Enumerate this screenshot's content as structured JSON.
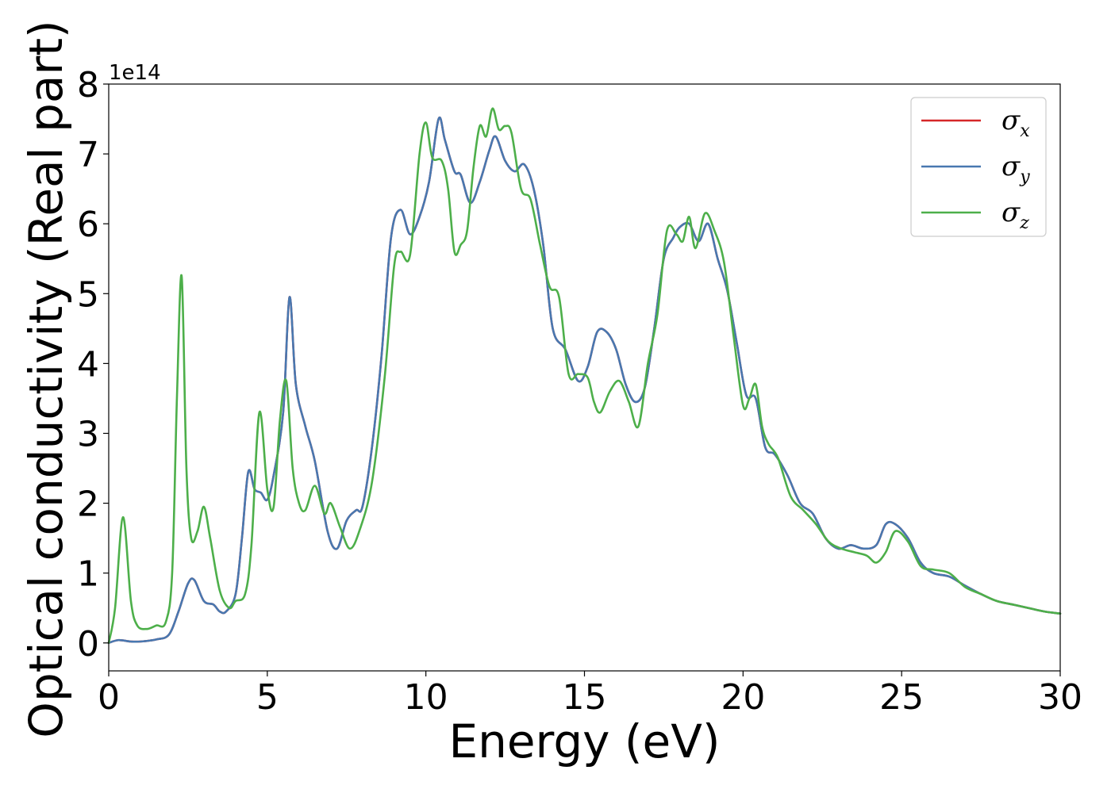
{
  "chart_data": {
    "type": "line",
    "xlabel": "Energy (eV)",
    "ylabel": "Optical conductivity (Real part)",
    "y_offset_label": "1e14",
    "xlim": [
      0,
      30
    ],
    "ylim": [
      -0.4,
      8.0
    ],
    "x_ticks": [
      0,
      5,
      10,
      15,
      20,
      25,
      30
    ],
    "x_tick_labels": [
      "0",
      "5",
      "10",
      "15",
      "20",
      "25",
      "30"
    ],
    "y_ticks": [
      0,
      1,
      2,
      3,
      4,
      5,
      6,
      7,
      8
    ],
    "y_tick_labels": [
      "0",
      "1",
      "2",
      "3",
      "4",
      "5",
      "6",
      "7",
      "8"
    ],
    "grid": false,
    "legend_position": "top-right",
    "series": [
      {
        "name": "σx",
        "legend_symbol": "σ",
        "legend_sub": "x",
        "color": "#d62728",
        "x": [
          0,
          0.3,
          0.7,
          1.0,
          1.5,
          1.9,
          2.2,
          2.5,
          2.7,
          3.0,
          3.3,
          3.5,
          3.7,
          4.0,
          4.2,
          4.4,
          4.6,
          4.8,
          5.0,
          5.2,
          5.5,
          5.7,
          5.9,
          6.2,
          6.5,
          6.9,
          7.2,
          7.5,
          7.8,
          8.0,
          8.3,
          8.6,
          8.9,
          9.2,
          9.5,
          9.8,
          10.1,
          10.4,
          10.6,
          10.9,
          11.1,
          11.4,
          11.7,
          12.0,
          12.2,
          12.5,
          12.8,
          13.1,
          13.4,
          13.7,
          14.0,
          14.4,
          14.8,
          15.1,
          15.4,
          15.7,
          16.0,
          16.3,
          16.6,
          16.9,
          17.2,
          17.5,
          17.8,
          18.0,
          18.3,
          18.6,
          18.9,
          19.2,
          19.5,
          19.8,
          20.1,
          20.4,
          20.7,
          21.0,
          21.4,
          21.8,
          22.2,
          22.6,
          23.0,
          23.4,
          23.8,
          24.2,
          24.5,
          24.8,
          25.2,
          25.6,
          26.0,
          26.5,
          27.0,
          27.5,
          28.0,
          28.5,
          29.0,
          29.5,
          30.0
        ],
        "y": [
          0.0,
          0.04,
          0.02,
          0.02,
          0.05,
          0.12,
          0.45,
          0.85,
          0.9,
          0.6,
          0.55,
          0.45,
          0.45,
          0.7,
          1.5,
          2.45,
          2.2,
          2.15,
          2.05,
          2.4,
          3.3,
          4.95,
          3.7,
          3.1,
          2.6,
          1.6,
          1.35,
          1.75,
          1.9,
          1.95,
          2.8,
          4.1,
          5.8,
          6.2,
          5.85,
          6.1,
          6.6,
          7.5,
          7.2,
          6.75,
          6.7,
          6.3,
          6.6,
          7.05,
          7.25,
          6.9,
          6.75,
          6.85,
          6.5,
          5.7,
          4.5,
          4.2,
          3.75,
          3.95,
          4.45,
          4.45,
          4.2,
          3.7,
          3.45,
          3.65,
          4.5,
          5.5,
          5.8,
          5.95,
          6.0,
          5.75,
          6.0,
          5.5,
          5.05,
          4.3,
          3.55,
          3.5,
          2.8,
          2.7,
          2.4,
          2.0,
          1.85,
          1.5,
          1.35,
          1.4,
          1.35,
          1.4,
          1.7,
          1.7,
          1.5,
          1.15,
          1.0,
          0.95,
          0.82,
          0.7,
          0.6,
          0.55,
          0.5,
          0.45,
          0.42
        ]
      },
      {
        "name": "σy",
        "legend_symbol": "σ",
        "legend_sub": "y",
        "color": "#4878b0",
        "x": [
          0,
          0.3,
          0.7,
          1.0,
          1.5,
          1.9,
          2.2,
          2.5,
          2.7,
          3.0,
          3.3,
          3.5,
          3.7,
          4.0,
          4.2,
          4.4,
          4.6,
          4.8,
          5.0,
          5.2,
          5.5,
          5.7,
          5.9,
          6.2,
          6.5,
          6.9,
          7.2,
          7.5,
          7.8,
          8.0,
          8.3,
          8.6,
          8.9,
          9.2,
          9.5,
          9.8,
          10.1,
          10.4,
          10.6,
          10.9,
          11.1,
          11.4,
          11.7,
          12.0,
          12.2,
          12.5,
          12.8,
          13.1,
          13.4,
          13.7,
          14.0,
          14.4,
          14.8,
          15.1,
          15.4,
          15.7,
          16.0,
          16.3,
          16.6,
          16.9,
          17.2,
          17.5,
          17.8,
          18.0,
          18.3,
          18.6,
          18.9,
          19.2,
          19.5,
          19.8,
          20.1,
          20.4,
          20.7,
          21.0,
          21.4,
          21.8,
          22.2,
          22.6,
          23.0,
          23.4,
          23.8,
          24.2,
          24.5,
          24.8,
          25.2,
          25.6,
          26.0,
          26.5,
          27.0,
          27.5,
          28.0,
          28.5,
          29.0,
          29.5,
          30.0
        ],
        "y": [
          0.0,
          0.04,
          0.02,
          0.02,
          0.05,
          0.12,
          0.45,
          0.85,
          0.9,
          0.6,
          0.55,
          0.45,
          0.45,
          0.7,
          1.5,
          2.45,
          2.2,
          2.15,
          2.05,
          2.4,
          3.3,
          4.95,
          3.7,
          3.1,
          2.6,
          1.6,
          1.35,
          1.75,
          1.9,
          1.95,
          2.8,
          4.1,
          5.8,
          6.2,
          5.85,
          6.1,
          6.6,
          7.5,
          7.2,
          6.75,
          6.7,
          6.3,
          6.6,
          7.05,
          7.25,
          6.9,
          6.75,
          6.85,
          6.5,
          5.7,
          4.5,
          4.2,
          3.75,
          3.95,
          4.45,
          4.45,
          4.2,
          3.7,
          3.45,
          3.65,
          4.5,
          5.5,
          5.8,
          5.95,
          6.0,
          5.75,
          6.0,
          5.5,
          5.05,
          4.3,
          3.55,
          3.5,
          2.8,
          2.7,
          2.4,
          2.0,
          1.85,
          1.5,
          1.35,
          1.4,
          1.35,
          1.4,
          1.7,
          1.7,
          1.5,
          1.15,
          1.0,
          0.95,
          0.82,
          0.7,
          0.6,
          0.55,
          0.5,
          0.45,
          0.42
        ]
      },
      {
        "name": "σz",
        "legend_symbol": "σ",
        "legend_sub": "z",
        "color": "#4daf4a",
        "x": [
          0,
          0.2,
          0.45,
          0.7,
          0.9,
          1.2,
          1.5,
          1.8,
          2.0,
          2.15,
          2.3,
          2.45,
          2.6,
          2.8,
          3.0,
          3.2,
          3.5,
          3.8,
          4.0,
          4.3,
          4.5,
          4.75,
          5.0,
          5.2,
          5.4,
          5.6,
          5.8,
          6.0,
          6.2,
          6.5,
          6.8,
          7.0,
          7.3,
          7.6,
          7.9,
          8.3,
          8.7,
          9.0,
          9.2,
          9.5,
          9.8,
          10.0,
          10.2,
          10.5,
          10.7,
          10.9,
          11.1,
          11.3,
          11.5,
          11.7,
          11.9,
          12.1,
          12.3,
          12.5,
          12.7,
          13.0,
          13.3,
          13.6,
          13.9,
          14.2,
          14.5,
          14.8,
          15.1,
          15.3,
          15.5,
          15.8,
          16.1,
          16.4,
          16.7,
          17.0,
          17.3,
          17.6,
          17.9,
          18.1,
          18.3,
          18.5,
          18.8,
          19.1,
          19.4,
          19.7,
          20.0,
          20.2,
          20.4,
          20.6,
          20.8,
          21.1,
          21.5,
          21.9,
          22.3,
          22.7,
          23.1,
          23.5,
          23.9,
          24.2,
          24.5,
          24.8,
          25.2,
          25.6,
          26.0,
          26.5,
          27.0,
          27.5,
          28.0,
          28.5,
          29.0,
          29.5,
          30.0
        ],
        "y": [
          0.0,
          0.5,
          1.8,
          0.6,
          0.25,
          0.2,
          0.25,
          0.3,
          1.0,
          3.5,
          5.25,
          2.5,
          1.5,
          1.6,
          1.95,
          1.5,
          0.75,
          0.5,
          0.6,
          0.7,
          1.4,
          3.3,
          2.2,
          1.95,
          3.2,
          3.75,
          2.5,
          2.0,
          1.9,
          2.25,
          1.85,
          2.0,
          1.65,
          1.35,
          1.6,
          2.3,
          3.8,
          5.4,
          5.6,
          5.55,
          7.0,
          7.45,
          6.95,
          6.9,
          6.5,
          5.6,
          5.7,
          5.9,
          6.8,
          7.4,
          7.25,
          7.65,
          7.35,
          7.4,
          7.3,
          6.5,
          6.35,
          5.7,
          5.1,
          4.95,
          3.85,
          3.85,
          3.8,
          3.45,
          3.3,
          3.6,
          3.75,
          3.45,
          3.1,
          4.0,
          4.7,
          5.9,
          5.85,
          5.75,
          6.1,
          5.65,
          6.15,
          5.9,
          5.45,
          4.4,
          3.4,
          3.5,
          3.7,
          3.1,
          2.85,
          2.65,
          2.1,
          1.9,
          1.7,
          1.45,
          1.35,
          1.3,
          1.25,
          1.15,
          1.3,
          1.6,
          1.45,
          1.1,
          1.05,
          1.0,
          0.8,
          0.7,
          0.6,
          0.55,
          0.5,
          0.45,
          0.42
        ]
      }
    ]
  }
}
